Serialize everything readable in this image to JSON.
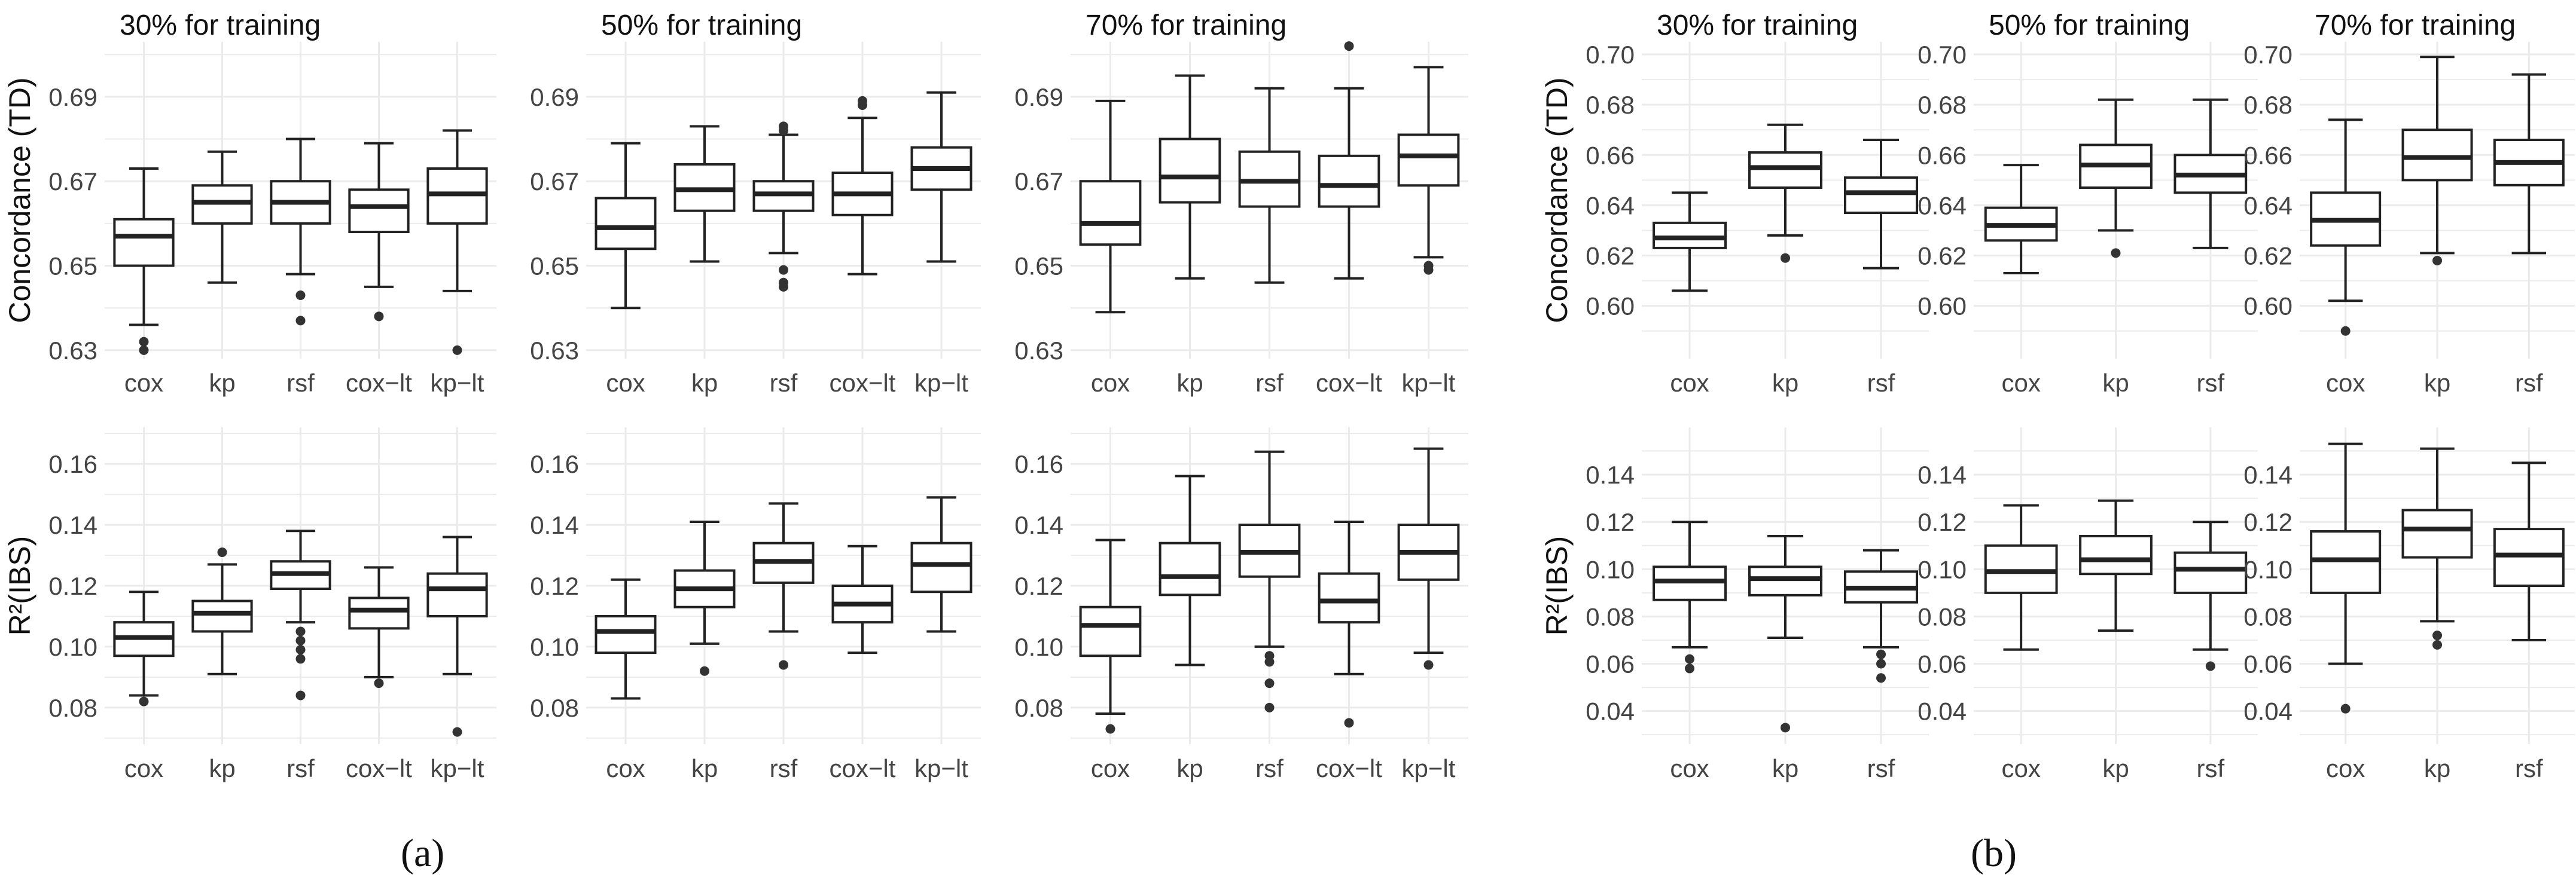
{
  "captions": {
    "a": "(a)",
    "b": "(b)"
  },
  "styling": {
    "box_fill": "#ffffff",
    "box_stroke": "#222222",
    "grid_color": "#ebebeb",
    "outlier_color": "#333333",
    "text_color": "#444444"
  },
  "chart_data": [
    {
      "id": "a-td-30",
      "type": "boxplot",
      "title": "30% for training",
      "ylabel": "Concordance (TD)",
      "categories": [
        "cox",
        "kp",
        "rsf",
        "cox−lt",
        "kp−lt"
      ],
      "ylim": [
        0.628,
        0.703
      ],
      "yticks": [
        0.63,
        0.65,
        0.67,
        0.69
      ],
      "ytick_labels": [
        "0.63",
        "0.65",
        "0.67",
        "0.69"
      ],
      "boxes": [
        {
          "low": 0.636,
          "q1": 0.65,
          "median": 0.657,
          "q3": 0.661,
          "high": 0.673,
          "outliers": [
            0.63,
            0.632
          ]
        },
        {
          "low": 0.646,
          "q1": 0.66,
          "median": 0.665,
          "q3": 0.669,
          "high": 0.677,
          "outliers": []
        },
        {
          "low": 0.648,
          "q1": 0.66,
          "median": 0.665,
          "q3": 0.67,
          "high": 0.68,
          "outliers": [
            0.637,
            0.643
          ]
        },
        {
          "low": 0.645,
          "q1": 0.658,
          "median": 0.664,
          "q3": 0.668,
          "high": 0.679,
          "outliers": [
            0.638
          ]
        },
        {
          "low": 0.644,
          "q1": 0.66,
          "median": 0.667,
          "q3": 0.673,
          "high": 0.682,
          "outliers": [
            0.63
          ]
        }
      ]
    },
    {
      "id": "a-td-50",
      "type": "boxplot",
      "title": "50% for training",
      "ylabel": "",
      "categories": [
        "cox",
        "kp",
        "rsf",
        "cox−lt",
        "kp−lt"
      ],
      "ylim": [
        0.628,
        0.703
      ],
      "yticks": [
        0.63,
        0.65,
        0.67,
        0.69
      ],
      "ytick_labels": [
        "0.63",
        "0.65",
        "0.67",
        "0.69"
      ],
      "boxes": [
        {
          "low": 0.64,
          "q1": 0.654,
          "median": 0.659,
          "q3": 0.666,
          "high": 0.679,
          "outliers": []
        },
        {
          "low": 0.651,
          "q1": 0.663,
          "median": 0.668,
          "q3": 0.674,
          "high": 0.683,
          "outliers": []
        },
        {
          "low": 0.653,
          "q1": 0.663,
          "median": 0.667,
          "q3": 0.67,
          "high": 0.681,
          "outliers": [
            0.645,
            0.646,
            0.649,
            0.682,
            0.683
          ]
        },
        {
          "low": 0.648,
          "q1": 0.662,
          "median": 0.667,
          "q3": 0.672,
          "high": 0.685,
          "outliers": [
            0.688,
            0.689
          ]
        },
        {
          "low": 0.651,
          "q1": 0.668,
          "median": 0.673,
          "q3": 0.678,
          "high": 0.691,
          "outliers": []
        }
      ]
    },
    {
      "id": "a-td-70",
      "type": "boxplot",
      "title": "70% for training",
      "ylabel": "",
      "categories": [
        "cox",
        "kp",
        "rsf",
        "cox−lt",
        "kp−lt"
      ],
      "ylim": [
        0.628,
        0.703
      ],
      "yticks": [
        0.63,
        0.65,
        0.67,
        0.69
      ],
      "ytick_labels": [
        "0.63",
        "0.65",
        "0.67",
        "0.69"
      ],
      "boxes": [
        {
          "low": 0.639,
          "q1": 0.655,
          "median": 0.66,
          "q3": 0.67,
          "high": 0.689,
          "outliers": []
        },
        {
          "low": 0.647,
          "q1": 0.665,
          "median": 0.671,
          "q3": 0.68,
          "high": 0.695,
          "outliers": []
        },
        {
          "low": 0.646,
          "q1": 0.664,
          "median": 0.67,
          "q3": 0.677,
          "high": 0.692,
          "outliers": []
        },
        {
          "low": 0.647,
          "q1": 0.664,
          "median": 0.669,
          "q3": 0.676,
          "high": 0.692,
          "outliers": [
            0.702
          ]
        },
        {
          "low": 0.652,
          "q1": 0.669,
          "median": 0.676,
          "q3": 0.681,
          "high": 0.697,
          "outliers": [
            0.649,
            0.65
          ]
        }
      ]
    },
    {
      "id": "a-r2-30",
      "type": "boxplot",
      "title": "",
      "ylabel": "R²(IBS)",
      "categories": [
        "cox",
        "kp",
        "rsf",
        "cox−lt",
        "kp−lt"
      ],
      "ylim": [
        0.068,
        0.172
      ],
      "yticks": [
        0.08,
        0.1,
        0.12,
        0.14,
        0.16
      ],
      "ytick_labels": [
        "0.08",
        "0.10",
        "0.12",
        "0.14",
        "0.16"
      ],
      "boxes": [
        {
          "low": 0.084,
          "q1": 0.097,
          "median": 0.103,
          "q3": 0.108,
          "high": 0.118,
          "outliers": [
            0.082
          ]
        },
        {
          "low": 0.091,
          "q1": 0.105,
          "median": 0.111,
          "q3": 0.115,
          "high": 0.127,
          "outliers": [
            0.131
          ]
        },
        {
          "low": 0.108,
          "q1": 0.119,
          "median": 0.124,
          "q3": 0.128,
          "high": 0.138,
          "outliers": [
            0.084,
            0.096,
            0.099,
            0.102,
            0.105
          ]
        },
        {
          "low": 0.09,
          "q1": 0.106,
          "median": 0.112,
          "q3": 0.116,
          "high": 0.126,
          "outliers": [
            0.088
          ]
        },
        {
          "low": 0.091,
          "q1": 0.11,
          "median": 0.119,
          "q3": 0.124,
          "high": 0.136,
          "outliers": [
            0.072
          ]
        }
      ]
    },
    {
      "id": "a-r2-50",
      "type": "boxplot",
      "title": "",
      "ylabel": "",
      "categories": [
        "cox",
        "kp",
        "rsf",
        "cox−lt",
        "kp−lt"
      ],
      "ylim": [
        0.068,
        0.172
      ],
      "yticks": [
        0.08,
        0.1,
        0.12,
        0.14,
        0.16
      ],
      "ytick_labels": [
        "0.08",
        "0.10",
        "0.12",
        "0.14",
        "0.16"
      ],
      "boxes": [
        {
          "low": 0.083,
          "q1": 0.098,
          "median": 0.105,
          "q3": 0.11,
          "high": 0.122,
          "outliers": []
        },
        {
          "low": 0.101,
          "q1": 0.113,
          "median": 0.119,
          "q3": 0.125,
          "high": 0.141,
          "outliers": [
            0.092
          ]
        },
        {
          "low": 0.105,
          "q1": 0.121,
          "median": 0.128,
          "q3": 0.134,
          "high": 0.147,
          "outliers": [
            0.094
          ]
        },
        {
          "low": 0.098,
          "q1": 0.108,
          "median": 0.114,
          "q3": 0.12,
          "high": 0.133,
          "outliers": []
        },
        {
          "low": 0.105,
          "q1": 0.118,
          "median": 0.127,
          "q3": 0.134,
          "high": 0.149,
          "outliers": []
        }
      ]
    },
    {
      "id": "a-r2-70",
      "type": "boxplot",
      "title": "",
      "ylabel": "",
      "categories": [
        "cox",
        "kp",
        "rsf",
        "cox−lt",
        "kp−lt"
      ],
      "ylim": [
        0.068,
        0.172
      ],
      "yticks": [
        0.08,
        0.1,
        0.12,
        0.14,
        0.16
      ],
      "ytick_labels": [
        "0.08",
        "0.10",
        "0.12",
        "0.14",
        "0.16"
      ],
      "boxes": [
        {
          "low": 0.078,
          "q1": 0.097,
          "median": 0.107,
          "q3": 0.113,
          "high": 0.135,
          "outliers": [
            0.073
          ]
        },
        {
          "low": 0.094,
          "q1": 0.117,
          "median": 0.123,
          "q3": 0.134,
          "high": 0.156,
          "outliers": []
        },
        {
          "low": 0.1,
          "q1": 0.123,
          "median": 0.131,
          "q3": 0.14,
          "high": 0.164,
          "outliers": [
            0.08,
            0.088,
            0.095,
            0.097
          ]
        },
        {
          "low": 0.091,
          "q1": 0.108,
          "median": 0.115,
          "q3": 0.124,
          "high": 0.141,
          "outliers": [
            0.075
          ]
        },
        {
          "low": 0.098,
          "q1": 0.122,
          "median": 0.131,
          "q3": 0.14,
          "high": 0.165,
          "outliers": [
            0.094
          ]
        }
      ]
    },
    {
      "id": "b-td-30",
      "type": "boxplot",
      "title": "30% for training",
      "ylabel": "Concordance (TD)",
      "categories": [
        "cox",
        "kp",
        "rsf"
      ],
      "ylim": [
        0.579,
        0.705
      ],
      "yticks": [
        0.6,
        0.62,
        0.64,
        0.66,
        0.68,
        0.7
      ],
      "ytick_labels": [
        "0.60",
        "0.62",
        "0.64",
        "0.66",
        "0.68",
        "0.70"
      ],
      "boxes": [
        {
          "low": 0.606,
          "q1": 0.623,
          "median": 0.627,
          "q3": 0.633,
          "high": 0.645,
          "outliers": []
        },
        {
          "low": 0.628,
          "q1": 0.647,
          "median": 0.655,
          "q3": 0.661,
          "high": 0.672,
          "outliers": [
            0.619
          ]
        },
        {
          "low": 0.615,
          "q1": 0.637,
          "median": 0.645,
          "q3": 0.651,
          "high": 0.666,
          "outliers": []
        }
      ]
    },
    {
      "id": "b-td-50",
      "type": "boxplot",
      "title": "50% for training",
      "ylabel": "",
      "categories": [
        "cox",
        "kp",
        "rsf"
      ],
      "ylim": [
        0.579,
        0.705
      ],
      "yticks": [
        0.6,
        0.62,
        0.64,
        0.66,
        0.68,
        0.7
      ],
      "ytick_labels": [
        "0.60",
        "0.62",
        "0.64",
        "0.66",
        "0.68",
        "0.70"
      ],
      "boxes": [
        {
          "low": 0.613,
          "q1": 0.626,
          "median": 0.632,
          "q3": 0.639,
          "high": 0.656,
          "outliers": []
        },
        {
          "low": 0.63,
          "q1": 0.647,
          "median": 0.656,
          "q3": 0.664,
          "high": 0.682,
          "outliers": [
            0.621
          ]
        },
        {
          "low": 0.623,
          "q1": 0.645,
          "median": 0.652,
          "q3": 0.66,
          "high": 0.682,
          "outliers": []
        }
      ]
    },
    {
      "id": "b-td-70",
      "type": "boxplot",
      "title": "70% for training",
      "ylabel": "",
      "categories": [
        "cox",
        "kp",
        "rsf"
      ],
      "ylim": [
        0.579,
        0.705
      ],
      "yticks": [
        0.6,
        0.62,
        0.64,
        0.66,
        0.68,
        0.7
      ],
      "ytick_labels": [
        "0.60",
        "0.62",
        "0.64",
        "0.66",
        "0.68",
        "0.70"
      ],
      "boxes": [
        {
          "low": 0.602,
          "q1": 0.624,
          "median": 0.634,
          "q3": 0.645,
          "high": 0.674,
          "outliers": [
            0.59
          ]
        },
        {
          "low": 0.621,
          "q1": 0.65,
          "median": 0.659,
          "q3": 0.67,
          "high": 0.699,
          "outliers": [
            0.618
          ]
        },
        {
          "low": 0.621,
          "q1": 0.648,
          "median": 0.657,
          "q3": 0.666,
          "high": 0.692,
          "outliers": []
        }
      ]
    },
    {
      "id": "b-r2-30",
      "type": "boxplot",
      "title": "",
      "ylabel": "R²(IBS)",
      "categories": [
        "cox",
        "kp",
        "rsf"
      ],
      "ylim": [
        0.026,
        0.16
      ],
      "yticks": [
        0.04,
        0.06,
        0.08,
        0.1,
        0.12,
        0.14
      ],
      "ytick_labels": [
        "0.04",
        "0.06",
        "0.08",
        "0.10",
        "0.12",
        "0.14"
      ],
      "boxes": [
        {
          "low": 0.067,
          "q1": 0.087,
          "median": 0.095,
          "q3": 0.101,
          "high": 0.12,
          "outliers": [
            0.058,
            0.062
          ]
        },
        {
          "low": 0.071,
          "q1": 0.089,
          "median": 0.096,
          "q3": 0.101,
          "high": 0.114,
          "outliers": [
            0.033
          ]
        },
        {
          "low": 0.067,
          "q1": 0.086,
          "median": 0.092,
          "q3": 0.099,
          "high": 0.108,
          "outliers": [
            0.054,
            0.06,
            0.064
          ]
        }
      ]
    },
    {
      "id": "b-r2-50",
      "type": "boxplot",
      "title": "",
      "ylabel": "",
      "categories": [
        "cox",
        "kp",
        "rsf"
      ],
      "ylim": [
        0.026,
        0.16
      ],
      "yticks": [
        0.04,
        0.06,
        0.08,
        0.1,
        0.12,
        0.14
      ],
      "ytick_labels": [
        "0.04",
        "0.06",
        "0.08",
        "0.10",
        "0.12",
        "0.14"
      ],
      "boxes": [
        {
          "low": 0.066,
          "q1": 0.09,
          "median": 0.099,
          "q3": 0.11,
          "high": 0.127,
          "outliers": []
        },
        {
          "low": 0.074,
          "q1": 0.098,
          "median": 0.104,
          "q3": 0.114,
          "high": 0.129,
          "outliers": []
        },
        {
          "low": 0.066,
          "q1": 0.09,
          "median": 0.1,
          "q3": 0.107,
          "high": 0.12,
          "outliers": [
            0.059
          ]
        }
      ]
    },
    {
      "id": "b-r2-70",
      "type": "boxplot",
      "title": "",
      "ylabel": "",
      "categories": [
        "cox",
        "kp",
        "rsf"
      ],
      "ylim": [
        0.026,
        0.16
      ],
      "yticks": [
        0.04,
        0.06,
        0.08,
        0.1,
        0.12,
        0.14
      ],
      "ytick_labels": [
        "0.04",
        "0.06",
        "0.08",
        "0.10",
        "0.12",
        "0.14"
      ],
      "boxes": [
        {
          "low": 0.06,
          "q1": 0.09,
          "median": 0.104,
          "q3": 0.116,
          "high": 0.153,
          "outliers": [
            0.041
          ]
        },
        {
          "low": 0.078,
          "q1": 0.105,
          "median": 0.117,
          "q3": 0.125,
          "high": 0.151,
          "outliers": [
            0.068,
            0.072
          ]
        },
        {
          "low": 0.07,
          "q1": 0.093,
          "median": 0.106,
          "q3": 0.117,
          "high": 0.145,
          "outliers": []
        }
      ]
    }
  ]
}
